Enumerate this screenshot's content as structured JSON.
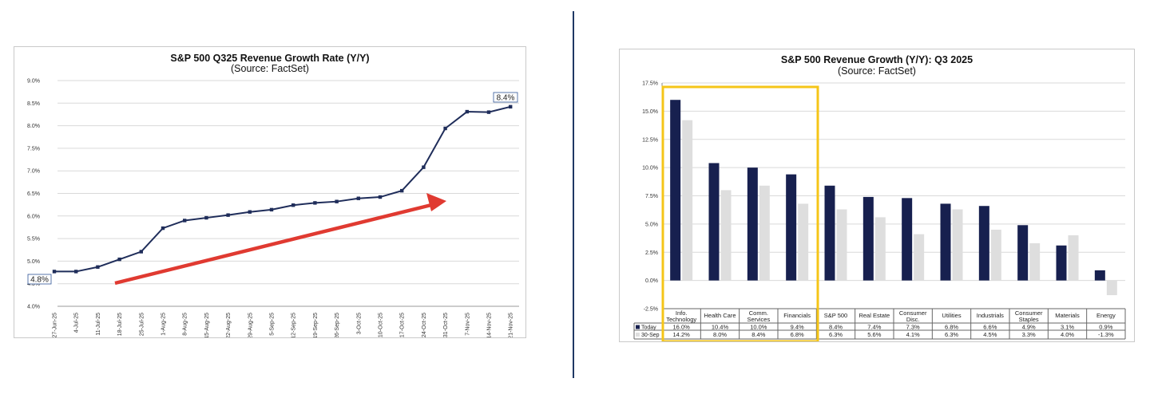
{
  "chart_data": [
    {
      "type": "line",
      "title": "S&P 500 Q325 Revenue Growth Rate (Y/Y)",
      "subtitle": "(Source: FactSet)",
      "categories": [
        "27-Jun-25",
        "4-Jul-25",
        "11-Jul-25",
        "18-Jul-25",
        "25-Jul-25",
        "1-Aug-25",
        "8-Aug-25",
        "15-Aug-25",
        "22-Aug-25",
        "29-Aug-25",
        "5-Sep-25",
        "12-Sep-25",
        "19-Sep-25",
        "26-Sep-25",
        "3-Oct-25",
        "10-Oct-25",
        "17-Oct-25",
        "24-Oct-25",
        "31-Oct-25",
        "7-Nov-25",
        "14-Nov-25",
        "21-Nov-25"
      ],
      "values": [
        4.77,
        4.77,
        4.87,
        5.04,
        5.21,
        5.73,
        5.9,
        5.96,
        6.02,
        6.09,
        6.14,
        6.24,
        6.29,
        6.32,
        6.39,
        6.42,
        6.56,
        7.08,
        7.94,
        8.31,
        8.3,
        8.42
      ],
      "yticks": [
        "9.0%",
        "8.5%",
        "8.0%",
        "7.5%",
        "7.0%",
        "6.5%",
        "6.0%",
        "5.5%",
        "5.0%",
        "4.5%",
        "4.0%"
      ],
      "ylim": [
        4.0,
        9.0
      ],
      "start_label": "4.8%",
      "end_label": "8.4%",
      "line_color": "#1f2d5a",
      "arrow_color": "#e03a31"
    },
    {
      "type": "bar",
      "title": "S&P 500 Revenue Growth (Y/Y): Q3 2025",
      "subtitle": "(Source: FactSet)",
      "categories": [
        [
          "Info.",
          "Technology"
        ],
        [
          "Health Care"
        ],
        [
          "Comm.",
          "Services"
        ],
        [
          "Financials"
        ],
        [
          "S&P 500"
        ],
        [
          "Real Estate"
        ],
        [
          "Consumer",
          "Disc."
        ],
        [
          "Utilities"
        ],
        [
          "Industrials"
        ],
        [
          "Consumer",
          "Staples"
        ],
        [
          "Materials"
        ],
        [
          "Energy"
        ]
      ],
      "series": [
        {
          "name": "Today",
          "color": "#17204f",
          "values": [
            16.0,
            10.4,
            10.0,
            9.4,
            8.4,
            7.4,
            7.3,
            6.8,
            6.6,
            4.9,
            3.1,
            0.9
          ],
          "labels": [
            "16.0%",
            "10.4%",
            "10.0%",
            "9.4%",
            "8.4%",
            "7.4%",
            "7.3%",
            "6.8%",
            "6.6%",
            "4.9%",
            "3.1%",
            "0.9%"
          ]
        },
        {
          "name": "30-Sep",
          "color": "#dedede",
          "values": [
            14.2,
            8.0,
            8.4,
            6.8,
            6.3,
            5.6,
            4.1,
            6.3,
            4.5,
            3.3,
            4.0,
            -1.3
          ],
          "labels": [
            "14.2%",
            "8.0%",
            "8.4%",
            "6.8%",
            "6.3%",
            "5.6%",
            "4.1%",
            "6.3%",
            "4.5%",
            "3.3%",
            "4.0%",
            "-1.3%"
          ]
        }
      ],
      "yticks": [
        "17.5%",
        "15.0%",
        "12.5%",
        "10.0%",
        "7.5%",
        "5.0%",
        "2.5%",
        "0.0%",
        "-2.5%"
      ],
      "ylim": [
        -2.5,
        17.5
      ],
      "highlight_color": "#f5c518"
    }
  ]
}
